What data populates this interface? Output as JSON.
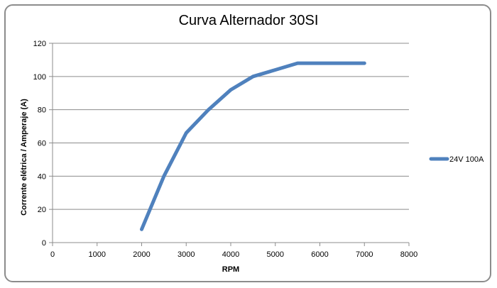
{
  "chart_data": {
    "type": "line",
    "title": "Curva Alternador 30SI",
    "xlabel": "RPM",
    "ylabel": "Corrente elétrica /  Amperaje (A)",
    "xlim": [
      0,
      8000
    ],
    "ylim": [
      0,
      120
    ],
    "xticks": [
      "0",
      "1000",
      "2000",
      "3000",
      "4000",
      "5000",
      "6000",
      "7000",
      "8000"
    ],
    "yticks": [
      "0",
      "20",
      "40",
      "60",
      "80",
      "100",
      "120"
    ],
    "grid": "horizontal",
    "legend_position": "right",
    "series": [
      {
        "name": "24V 100A",
        "color": "#4f81bd",
        "x": [
          2000,
          2500,
          3000,
          3500,
          4000,
          4500,
          5000,
          5500,
          6000,
          6500,
          7000
        ],
        "y": [
          8,
          40,
          66,
          80,
          92,
          100,
          104,
          108,
          108,
          108,
          108
        ]
      }
    ]
  }
}
